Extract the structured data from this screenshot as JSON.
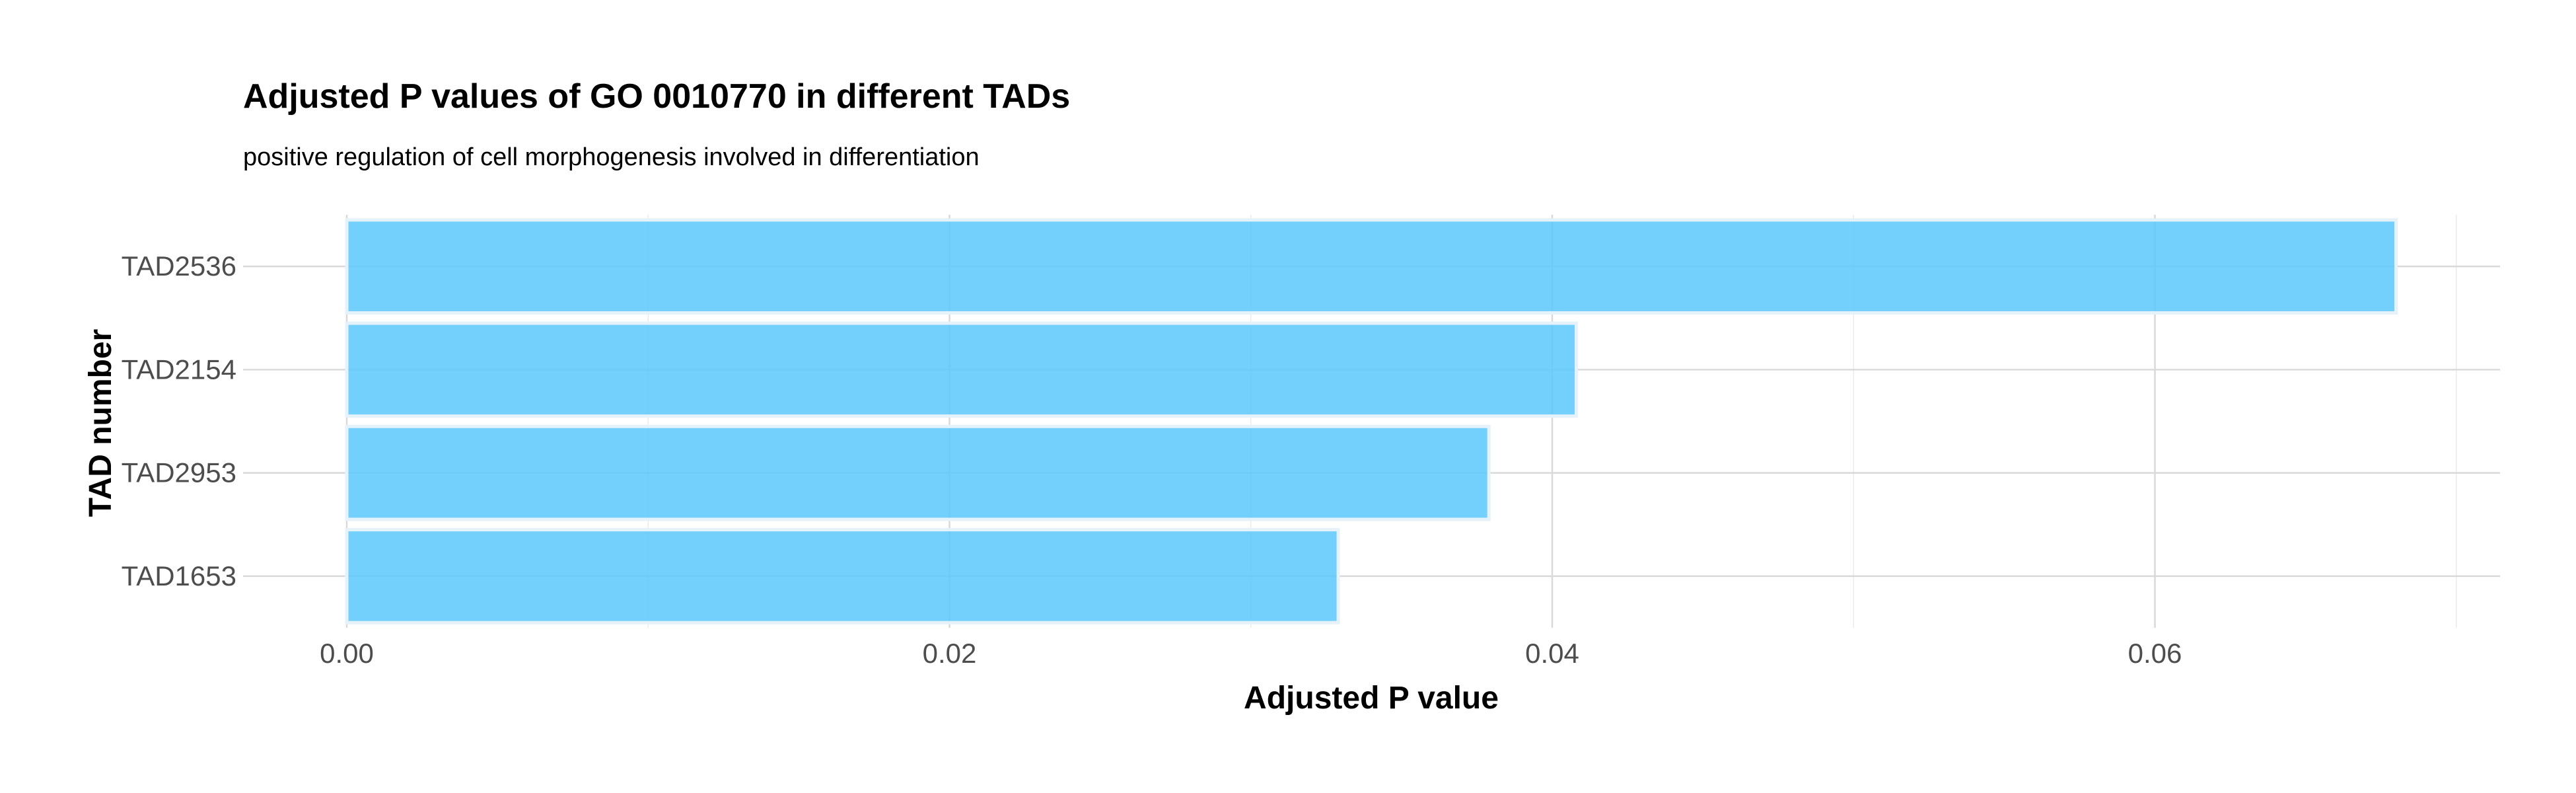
{
  "chart_data": {
    "type": "bar",
    "orientation": "horizontal",
    "title": "Adjusted P values of GO 0010770 in different TADs",
    "subtitle": "positive regulation of cell morphogenesis involved in differentiation",
    "xlabel": "Adjusted P value",
    "ylabel": "TAD number",
    "categories": [
      "TAD2536",
      "TAD2154",
      "TAD2953",
      "TAD1653"
    ],
    "values": [
      0.068,
      0.0408,
      0.0379,
      0.0329
    ],
    "xlim": [
      0,
      0.0715
    ],
    "xticks": [
      0,
      0.02,
      0.04,
      0.06
    ],
    "xtick_labels": [
      "0.00",
      "0.02",
      "0.04",
      "0.06"
    ],
    "grid": true,
    "bar_color": "#5bc8fb",
    "bar_border_color": "#e6f2fa"
  }
}
